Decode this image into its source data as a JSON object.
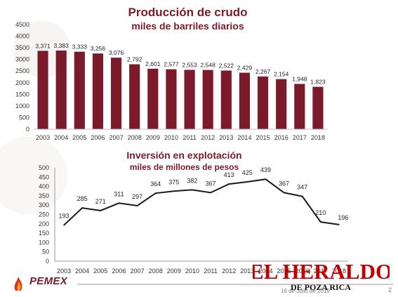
{
  "chart_data": [
    {
      "type": "bar",
      "title": "Producción de crudo",
      "subtitle": "miles de barriles diarios",
      "categories": [
        "2003",
        "2004",
        "2005",
        "2006",
        "2007",
        "2008",
        "2009",
        "2010",
        "2011",
        "2012",
        "2013",
        "2014",
        "2015",
        "2016",
        "2017",
        "2018"
      ],
      "values": [
        3371,
        3383,
        3333,
        3256,
        3076,
        2792,
        2601,
        2577,
        2553,
        2548,
        2522,
        2429,
        2267,
        2154,
        1948,
        1823
      ],
      "data_labels": [
        "3,371",
        "3,383",
        "3,333",
        "3,256",
        "3,076",
        "2,792",
        "2,601",
        "2,577",
        "2,553",
        "2,548",
        "2,522",
        "2,429",
        "2,267",
        "2,154",
        "1,948",
        "1,823"
      ],
      "ylim": [
        0,
        4500
      ],
      "yticks": [
        0,
        500,
        1000,
        1500,
        2000,
        2500,
        3000,
        3500,
        4000,
        4500
      ],
      "color": "#7a1a2a"
    },
    {
      "type": "line",
      "title": "Inversión en explotación",
      "subtitle": "miles de millones de pesos",
      "categories": [
        "2003",
        "2004",
        "2005",
        "2006",
        "2007",
        "2008",
        "2009",
        "2010",
        "2011",
        "2012",
        "2013",
        "2014",
        "2015",
        "2016",
        "2017",
        "2018"
      ],
      "values": [
        193,
        285,
        271,
        311,
        297,
        364,
        375,
        382,
        367,
        413,
        425,
        439,
        367,
        347,
        210,
        196
      ],
      "data_labels": [
        "193",
        "285",
        "271",
        "311",
        "297",
        "364",
        "375",
        "382",
        "367",
        "413",
        "425",
        "439",
        "367",
        "347",
        "210",
        "196"
      ],
      "ylim": [
        0,
        500
      ],
      "yticks": [
        0,
        50,
        100,
        150,
        200,
        250,
        300,
        350,
        400,
        450,
        500
      ],
      "color": "#1a1a1a"
    }
  ],
  "footer": {
    "brand": "PEMEX",
    "date": "16 de Julio de 2019",
    "page": "2",
    "overlay_title": "EL HERALDO",
    "overlay_subtitle": "DE POZA RICA"
  },
  "colors": {
    "accent": "#7a1a2a",
    "overlay": "#c00000"
  }
}
